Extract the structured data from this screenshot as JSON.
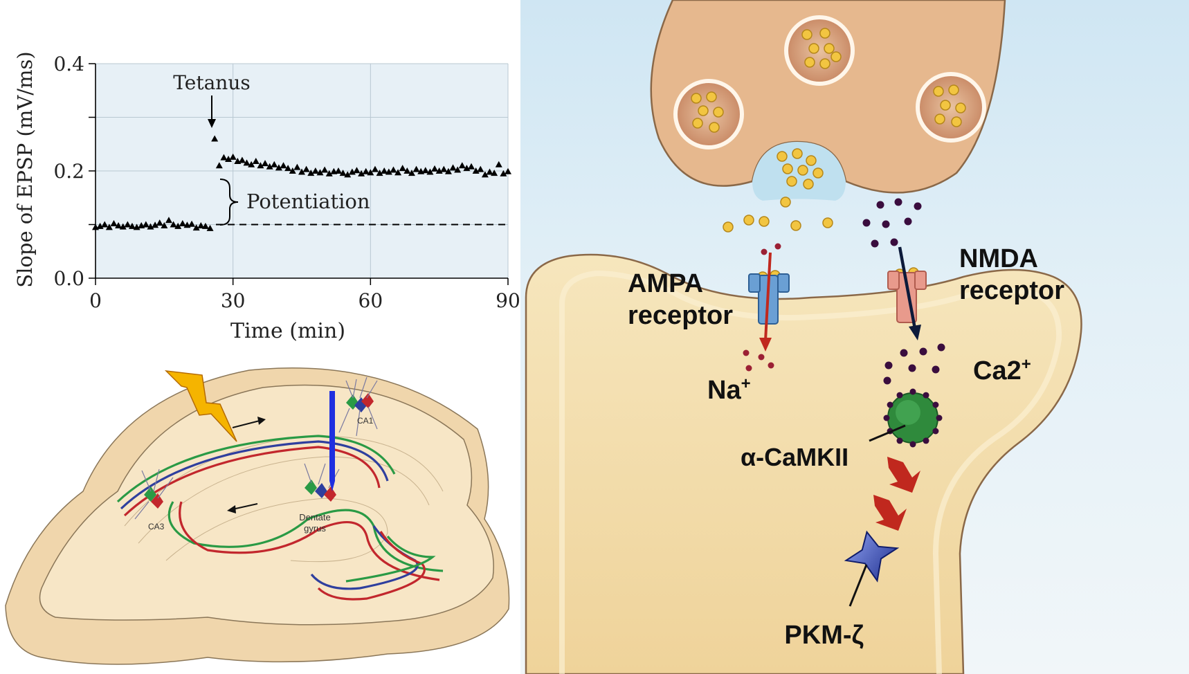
{
  "plot": {
    "title": "",
    "ylabel": "Slope of EPSP (mV/ms)",
    "xlabel": "Time (min)",
    "annotation_tetanus": "Tetanus",
    "annotation_potentiation": "Potentiation",
    "x_ticks": [
      "0",
      "30",
      "60",
      "90"
    ],
    "y_ticks": [
      "0.0",
      "0.2",
      "0.4"
    ]
  },
  "chart_data": {
    "type": "scatter",
    "xlim": [
      0,
      90
    ],
    "ylim": [
      0,
      0.4
    ],
    "grid": true,
    "marker": "triangle",
    "baseline": 0.1,
    "tetanus_time": 26,
    "x": [
      0,
      1,
      2,
      3,
      4,
      5,
      6,
      7,
      8,
      9,
      10,
      11,
      12,
      13,
      14,
      15,
      16,
      17,
      18,
      19,
      20,
      21,
      22,
      23,
      24,
      25,
      26,
      27,
      28,
      29,
      30,
      31,
      32,
      33,
      34,
      35,
      36,
      37,
      38,
      39,
      40,
      41,
      42,
      43,
      44,
      45,
      46,
      47,
      48,
      49,
      50,
      51,
      52,
      53,
      54,
      55,
      56,
      57,
      58,
      59,
      60,
      61,
      62,
      63,
      64,
      65,
      66,
      67,
      68,
      69,
      70,
      71,
      72,
      73,
      74,
      75,
      76,
      77,
      78,
      79,
      80,
      81,
      82,
      83,
      84,
      85,
      86,
      87,
      88,
      89,
      90
    ],
    "y": [
      0.095,
      0.097,
      0.1,
      0.095,
      0.102,
      0.098,
      0.096,
      0.1,
      0.097,
      0.095,
      0.098,
      0.1,
      0.096,
      0.099,
      0.103,
      0.098,
      0.108,
      0.1,
      0.097,
      0.102,
      0.099,
      0.101,
      0.094,
      0.098,
      0.097,
      0.093,
      0.26,
      0.21,
      0.225,
      0.222,
      0.226,
      0.218,
      0.22,
      0.215,
      0.212,
      0.218,
      0.21,
      0.214,
      0.208,
      0.212,
      0.206,
      0.21,
      0.205,
      0.2,
      0.207,
      0.198,
      0.203,
      0.196,
      0.2,
      0.197,
      0.202,
      0.195,
      0.199,
      0.2,
      0.196,
      0.193,
      0.198,
      0.201,
      0.195,
      0.199,
      0.197,
      0.203,
      0.196,
      0.2,
      0.198,
      0.202,
      0.197,
      0.205,
      0.2,
      0.196,
      0.203,
      0.199,
      0.201,
      0.198,
      0.204,
      0.2,
      0.203,
      0.199,
      0.206,
      0.202,
      0.21,
      0.205,
      0.208,
      0.2,
      0.203,
      0.193,
      0.198,
      0.196,
      0.212,
      0.195,
      0.199
    ]
  },
  "hippocampus": {
    "label_ca1": "CA1",
    "label_ca3": "CA3",
    "label_dentate_line1": "Dentate",
    "label_dentate_line2": "gyrus",
    "colors": {
      "red": "#c2272d",
      "blue": "#2f3f9e",
      "green": "#2a9a45",
      "tissue": "#f5e3c3",
      "electrode": "#1f2fe0",
      "bolt": "#f5b400"
    }
  },
  "synapse": {
    "ampa_line1": "AMPA",
    "ampa_line2": "receptor",
    "nmda_line1": "NMDA",
    "nmda_line2": "receptor",
    "na_label": "Na",
    "na_sup": "+",
    "ca_label": "Ca2",
    "ca_sup": "+",
    "camkii_label": "α-CaMKII",
    "pkm_label": "PKM-ζ",
    "colors": {
      "presynaptic": "#e8b98e",
      "postsynaptic": "#f3deb0",
      "ampa": "#6a9fd4",
      "nmda": "#e89a8c",
      "arrow_red": "#c0281e",
      "arrow_dark": "#0c1a3a",
      "camkii": "#2f8a3c",
      "pkm": "#2b3fa8"
    }
  }
}
